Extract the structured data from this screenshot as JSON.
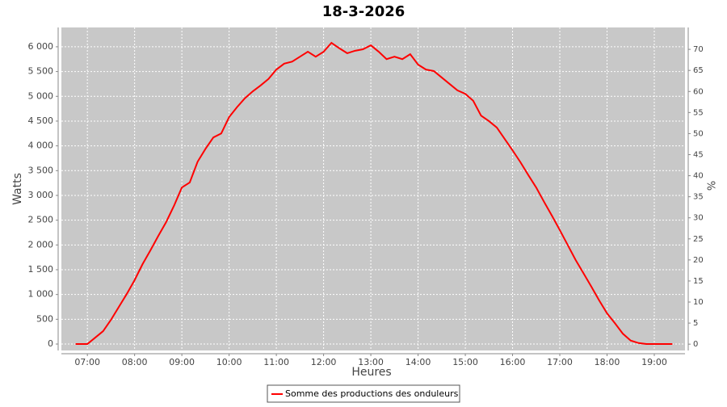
{
  "chart_data": {
    "type": "line",
    "title": "18-3-2026",
    "xlabel": "Heures",
    "ylabel": "Watts",
    "y2label": "%",
    "x": [
      "06:45",
      "07:00",
      "07:10",
      "07:20",
      "07:30",
      "07:40",
      "07:50",
      "08:00",
      "08:10",
      "08:20",
      "08:30",
      "08:40",
      "08:50",
      "09:00",
      "09:10",
      "09:20",
      "09:30",
      "09:40",
      "09:50",
      "10:00",
      "10:10",
      "10:20",
      "10:30",
      "10:40",
      "10:50",
      "11:00",
      "11:10",
      "11:20",
      "11:30",
      "11:40",
      "11:50",
      "12:00",
      "12:10",
      "12:20",
      "12:30",
      "12:40",
      "12:50",
      "13:00",
      "13:10",
      "13:20",
      "13:30",
      "13:40",
      "13:50",
      "14:00",
      "14:10",
      "14:20",
      "14:30",
      "14:40",
      "14:50",
      "15:00",
      "15:10",
      "15:20",
      "15:30",
      "15:40",
      "15:50",
      "16:00",
      "16:10",
      "16:20",
      "16:30",
      "16:40",
      "16:50",
      "17:00",
      "17:10",
      "17:20",
      "17:30",
      "17:40",
      "17:50",
      "18:00",
      "18:10",
      "18:20",
      "18:30",
      "18:40",
      "18:50",
      "19:00",
      "19:10",
      "19:23"
    ],
    "series": [
      {
        "name": "Somme des productions des onduleurs",
        "color": "#ff0000",
        "values": [
          0,
          0,
          130,
          260,
          490,
          750,
          1010,
          1290,
          1610,
          1890,
          2180,
          2460,
          2790,
          3160,
          3260,
          3680,
          3940,
          4170,
          4250,
          4580,
          4780,
          4960,
          5100,
          5220,
          5350,
          5540,
          5660,
          5700,
          5800,
          5900,
          5800,
          5900,
          6080,
          5970,
          5870,
          5920,
          5950,
          6030,
          5900,
          5750,
          5800,
          5750,
          5850,
          5640,
          5540,
          5510,
          5380,
          5250,
          5120,
          5050,
          4910,
          4610,
          4500,
          4370,
          4140,
          3910,
          3670,
          3410,
          3160,
          2870,
          2590,
          2300,
          2000,
          1700,
          1430,
          1160,
          880,
          620,
          420,
          210,
          70,
          20,
          0,
          0,
          0,
          0
        ]
      }
    ],
    "xlim": [
      "06:27",
      "19:39"
    ],
    "xticks": [
      "07:00",
      "08:00",
      "09:00",
      "10:00",
      "11:00",
      "12:00",
      "13:00",
      "14:00",
      "15:00",
      "16:00",
      "17:00",
      "18:00",
      "19:00"
    ],
    "ylim": [
      -130,
      6390
    ],
    "yticks": [
      0,
      500,
      {
        "value": 1000,
        "label": "1 000"
      },
      {
        "value": 1500,
        "label": "1 500"
      },
      {
        "value": 2000,
        "label": "2 000"
      },
      {
        "value": 2500,
        "label": "2 500"
      },
      {
        "value": 3000,
        "label": "3 000"
      },
      {
        "value": 3500,
        "label": "3 500"
      },
      {
        "value": 4000,
        "label": "4 000"
      },
      {
        "value": 4500,
        "label": "4 500"
      },
      {
        "value": 5000,
        "label": "5 000"
      },
      {
        "value": 5500,
        "label": "5 500"
      },
      {
        "value": 6000,
        "label": "6 000"
      }
    ],
    "y2lim": [
      -1.5,
      75.2
    ],
    "y2ticks": [
      0,
      5,
      10,
      15,
      20,
      25,
      30,
      35,
      40,
      45,
      50,
      55,
      60,
      65,
      70
    ],
    "grid": true,
    "legend": "bottom"
  }
}
